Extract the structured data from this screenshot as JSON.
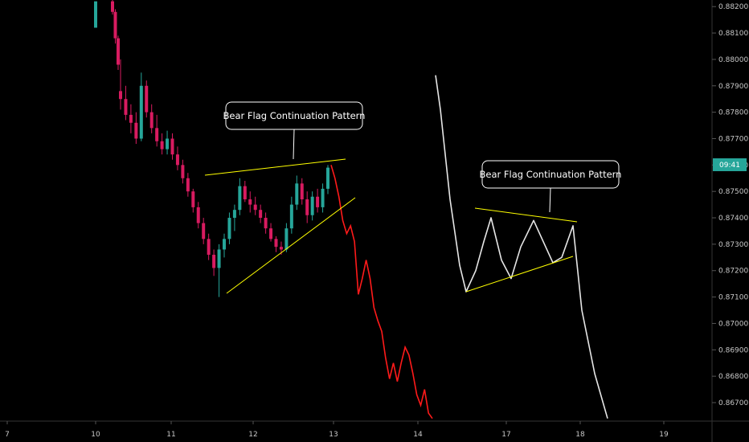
{
  "chart_data": {
    "type": "candlestick",
    "xlabel": "",
    "ylabel": "",
    "y_axis_side": "right",
    "ylim": [
      0.8663,
      0.88225
    ],
    "x_ticks": [
      "7",
      "10",
      "11",
      "12",
      "13",
      "14",
      "17",
      "18",
      "19"
    ],
    "y_ticks": [
      "0.88200",
      "0.88100",
      "0.88000",
      "0.87900",
      "0.87800",
      "0.87700",
      "0.87600",
      "0.87500",
      "0.87400",
      "0.87300",
      "0.87200",
      "0.87100",
      "0.87000",
      "0.86900",
      "0.86800",
      "0.86700"
    ],
    "current_time_badge": "09:41",
    "colors": {
      "bull": "#26a69a",
      "bear": "#d81b60",
      "projection": "#ff1a1a",
      "schematic": "#e6e6e6",
      "trendline": "#ffff00",
      "badge": "#26a69a"
    },
    "candles": [
      [
        0.8788,
        0.88,
        0.8781,
        0.8785
      ],
      [
        0.8785,
        0.879,
        0.8777,
        0.8779
      ],
      [
        0.8779,
        0.8783,
        0.8772,
        0.8776
      ],
      [
        0.8776,
        0.878,
        0.8768,
        0.877
      ],
      [
        0.877,
        0.8795,
        0.8769,
        0.879
      ],
      [
        0.879,
        0.8792,
        0.8778,
        0.878
      ],
      [
        0.878,
        0.8783,
        0.8772,
        0.8774
      ],
      [
        0.8774,
        0.8779,
        0.8767,
        0.8769
      ],
      [
        0.8769,
        0.8772,
        0.8764,
        0.8766
      ],
      [
        0.8766,
        0.8773,
        0.8764,
        0.877
      ],
      [
        0.877,
        0.8772,
        0.8762,
        0.8764
      ],
      [
        0.8764,
        0.8767,
        0.8758,
        0.876
      ],
      [
        0.876,
        0.8762,
        0.8753,
        0.8755
      ],
      [
        0.8755,
        0.8757,
        0.8748,
        0.875
      ],
      [
        0.875,
        0.8751,
        0.8742,
        0.8744
      ],
      [
        0.8744,
        0.8746,
        0.8736,
        0.8738
      ],
      [
        0.8738,
        0.874,
        0.873,
        0.8732
      ],
      [
        0.8732,
        0.8734,
        0.8724,
        0.8726
      ],
      [
        0.8726,
        0.8728,
        0.8718,
        0.8721
      ],
      [
        0.8721,
        0.873,
        0.871,
        0.8728
      ],
      [
        0.8728,
        0.8734,
        0.8725,
        0.8732
      ],
      [
        0.8732,
        0.8742,
        0.873,
        0.874
      ],
      [
        0.874,
        0.8745,
        0.8735,
        0.8743
      ],
      [
        0.8743,
        0.8755,
        0.8741,
        0.8752
      ],
      [
        0.8752,
        0.8754,
        0.8746,
        0.8747
      ],
      [
        0.8747,
        0.875,
        0.8742,
        0.8745
      ],
      [
        0.8745,
        0.8748,
        0.8741,
        0.8743
      ],
      [
        0.8743,
        0.8745,
        0.8738,
        0.874
      ],
      [
        0.874,
        0.8742,
        0.8734,
        0.8736
      ],
      [
        0.8736,
        0.8738,
        0.8731,
        0.8732
      ],
      [
        0.8732,
        0.8733,
        0.8727,
        0.8729
      ],
      [
        0.8729,
        0.8731,
        0.8726,
        0.8728
      ],
      [
        0.8728,
        0.8738,
        0.8727,
        0.8736
      ],
      [
        0.8736,
        0.8748,
        0.8734,
        0.8745
      ],
      [
        0.8745,
        0.8756,
        0.8743,
        0.8753
      ],
      [
        0.8753,
        0.8755,
        0.8745,
        0.8747
      ],
      [
        0.8747,
        0.875,
        0.8738,
        0.8741
      ],
      [
        0.8741,
        0.875,
        0.8739,
        0.8748
      ],
      [
        0.8748,
        0.8751,
        0.8742,
        0.8744
      ],
      [
        0.8744,
        0.8753,
        0.8742,
        0.8751
      ],
      [
        0.8751,
        0.876,
        0.8749,
        0.8759
      ]
    ],
    "projection_path": [
      [
        0.8759,
        0.8761
      ],
      [
        0.8754,
        0.8756
      ],
      [
        0.8747,
        0.8749
      ],
      [
        0.8738,
        0.874
      ],
      [
        0.8733,
        0.8735
      ],
      [
        0.8736,
        0.8738
      ],
      [
        0.873,
        0.8732
      ],
      [
        0.871,
        0.8712
      ],
      [
        0.8716,
        0.8718
      ],
      [
        0.8723,
        0.8725
      ],
      [
        0.8716,
        0.8718
      ],
      [
        0.8705,
        0.8707
      ],
      [
        0.87,
        0.8702
      ],
      [
        0.8696,
        0.8698
      ],
      [
        0.8686,
        0.8688
      ],
      [
        0.8678,
        0.868
      ],
      [
        0.8684,
        0.8686
      ],
      [
        0.8677,
        0.8679
      ],
      [
        0.8684,
        0.8686
      ],
      [
        0.869,
        0.8692
      ],
      [
        0.8687,
        0.8689
      ],
      [
        0.868,
        0.8682
      ],
      [
        0.8672,
        0.8674
      ],
      [
        0.8668,
        0.867
      ],
      [
        0.8674,
        0.8676
      ],
      [
        0.8665,
        0.8667
      ],
      [
        0.8663,
        0.8665
      ]
    ],
    "schematic_path": [
      [
        0.8793,
        0.8795
      ],
      [
        0.878,
        0.8782
      ],
      [
        0.8746,
        0.8748
      ],
      [
        0.8721,
        0.8723
      ],
      [
        0.8711,
        0.8713
      ],
      [
        0.8719,
        0.8721
      ],
      [
        0.873,
        0.8732
      ],
      [
        0.8739,
        0.8741
      ],
      [
        0.8723,
        0.8725
      ],
      [
        0.8716,
        0.8718
      ],
      [
        0.8728,
        0.873
      ],
      [
        0.8738,
        0.874
      ],
      [
        0.8722,
        0.8724
      ],
      [
        0.8724,
        0.8726
      ],
      [
        0.8736,
        0.8738
      ],
      [
        0.8704,
        0.8706
      ],
      [
        0.868,
        0.8682
      ],
      [
        0.8663,
        0.8665
      ]
    ],
    "annotations": [
      {
        "text": "Bear Flag Continuation Pattern"
      },
      {
        "text": "Bear Flag Continuation Pattern"
      }
    ]
  }
}
